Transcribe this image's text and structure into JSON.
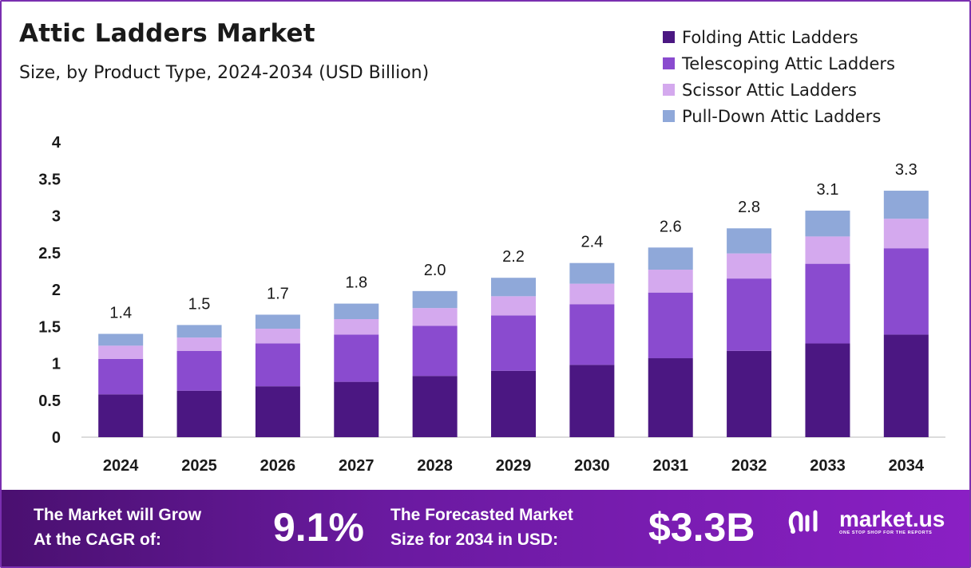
{
  "header": {
    "title": "Attic Ladders Market",
    "subtitle": "Size, by Product Type, 2024-2034 (USD Billion)"
  },
  "chart_data": {
    "type": "bar",
    "stacked": true,
    "title": "Attic Ladders Market",
    "subtitle": "Size, by Product Type, 2024-2034 (USD Billion)",
    "categories": [
      "2024",
      "2025",
      "2026",
      "2027",
      "2028",
      "2029",
      "2030",
      "2031",
      "2032",
      "2033",
      "2034"
    ],
    "series": [
      {
        "name": "Folding Attic Ladders",
        "color": "#4b1782",
        "values": [
          0.58,
          0.63,
          0.69,
          0.75,
          0.83,
          0.9,
          0.98,
          1.07,
          1.17,
          1.27,
          1.39
        ]
      },
      {
        "name": "Telescoping Attic Ladders",
        "color": "#8a4bcf",
        "values": [
          0.48,
          0.54,
          0.58,
          0.64,
          0.68,
          0.75,
          0.82,
          0.89,
          0.98,
          1.08,
          1.17
        ]
      },
      {
        "name": "Scissor Attic Ladders",
        "color": "#d4a9ee",
        "values": [
          0.18,
          0.18,
          0.2,
          0.21,
          0.24,
          0.26,
          0.28,
          0.31,
          0.34,
          0.37,
          0.4
        ]
      },
      {
        "name": "Pull-Down Attic Ladders",
        "color": "#8fa8d9",
        "values": [
          0.16,
          0.17,
          0.19,
          0.21,
          0.23,
          0.25,
          0.28,
          0.3,
          0.34,
          0.35,
          0.38
        ]
      }
    ],
    "totals": [
      "1.4",
      "1.5",
      "1.7",
      "1.8",
      "2.0",
      "2.2",
      "2.4",
      "2.6",
      "2.8",
      "3.1",
      "3.3"
    ],
    "yticks": [
      "0",
      "0.5",
      "1",
      "1.5",
      "2",
      "2.5",
      "3",
      "3.5",
      "4"
    ],
    "ylim": [
      0,
      4
    ],
    "grid": false,
    "legend_position": "top-right"
  },
  "footer": {
    "cagr_label_line1": "The Market will Grow",
    "cagr_label_line2": "At the CAGR of:",
    "cagr_value": "9.1%",
    "forecast_label_line1": "The Forecasted Market",
    "forecast_label_line2": "Size for 2034 in USD:",
    "forecast_value": "$3.3B",
    "logo_name": "market.us",
    "logo_tagline": "ONE STOP SHOP FOR THE REPORTS",
    "logo_icon": "market-us-logo-icon"
  },
  "colors": {
    "footer_bg_start": "#4a1070",
    "footer_bg_end": "#8a1fc4",
    "frame_border": "#7a2fb0"
  }
}
